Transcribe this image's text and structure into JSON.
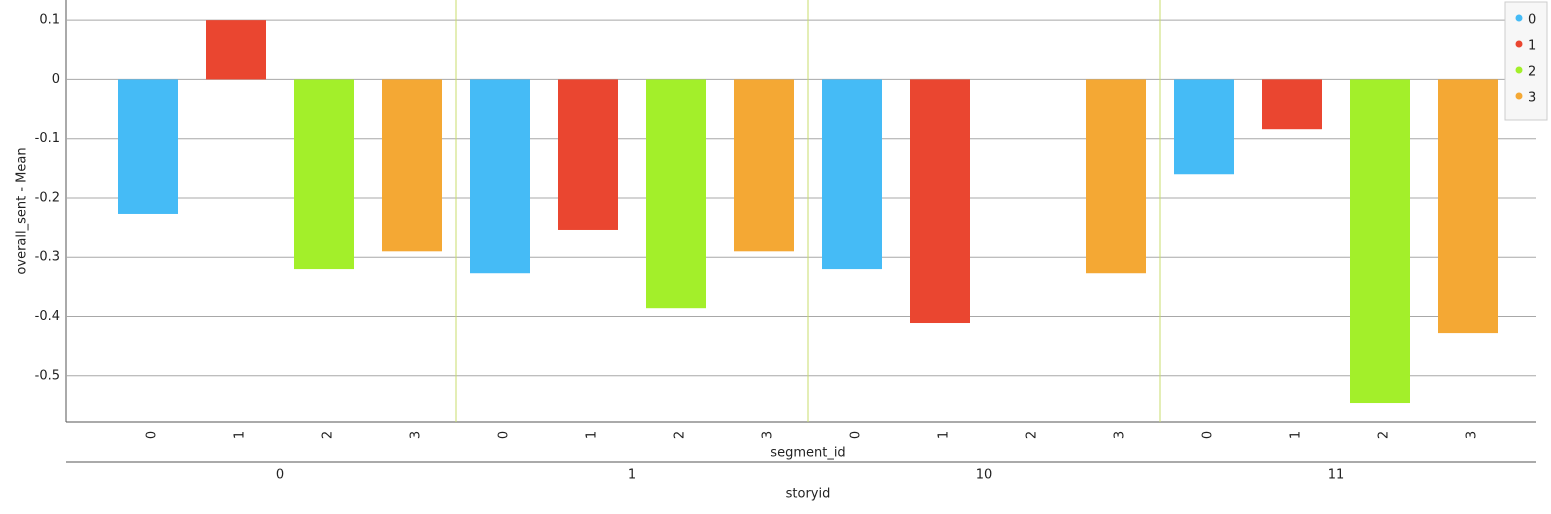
{
  "chart_data": {
    "type": "bar",
    "y_label": "overall_sent - Mean",
    "x_label": "segment_id",
    "group_label": "storyid",
    "categories": [
      "0",
      "1",
      "10",
      "11"
    ],
    "series": [
      {
        "name": "0",
        "color": "#45bbf6",
        "values": [
          -0.227,
          -0.327,
          -0.32,
          -0.16
        ]
      },
      {
        "name": "1",
        "color": "#ea4630",
        "values": [
          0.1,
          -0.254,
          -0.411,
          -0.084
        ]
      },
      {
        "name": "2",
        "color": "#a3ef2a",
        "values": [
          -0.32,
          -0.386,
          null,
          -0.546
        ]
      },
      {
        "name": "3",
        "color": "#f4a834",
        "values": [
          -0.29,
          -0.29,
          -0.327,
          -0.428
        ]
      }
    ],
    "ylim": [
      -0.578,
      0.134
    ],
    "yticks": [
      0.1,
      0,
      -0.1,
      -0.2,
      -0.3,
      -0.4,
      -0.5
    ],
    "grid": true,
    "legend": "top-right"
  }
}
